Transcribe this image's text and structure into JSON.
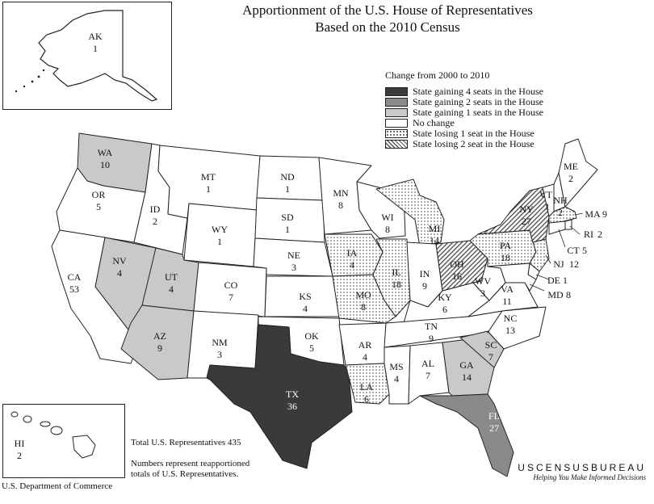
{
  "title": {
    "line1": "Apportionment of the U.S. House of Representatives",
    "line2": "Based on the 2010 Census"
  },
  "legend": {
    "header": "Change from 2000 to 2010",
    "items": [
      {
        "key": "g4",
        "label": "State gaining 4 seats in the House"
      },
      {
        "key": "g2",
        "label": "State gaining 2 seats in the House"
      },
      {
        "key": "g1",
        "label": "State gaining 1 seats in the House"
      },
      {
        "key": "none",
        "label": "No change"
      },
      {
        "key": "l1",
        "label": "State losing 1 seat in the House"
      },
      {
        "key": "l2",
        "label": "State losing 2 seat in the House"
      }
    ]
  },
  "colors": {
    "g4": "#3a3a3a",
    "g2": "#8a8a8a",
    "g1": "#c9c9c9",
    "none": "#ffffff"
  },
  "states": {
    "AK": {
      "abbr": "AK",
      "seats": "1",
      "change": "none"
    },
    "HI": {
      "abbr": "HI",
      "seats": "2",
      "change": "none"
    },
    "WA": {
      "abbr": "WA",
      "seats": "10",
      "change": "g1"
    },
    "OR": {
      "abbr": "OR",
      "seats": "5",
      "change": "none"
    },
    "CA": {
      "abbr": "CA",
      "seats": "53",
      "change": "none"
    },
    "ID": {
      "abbr": "ID",
      "seats": "2",
      "change": "none"
    },
    "NV": {
      "abbr": "NV",
      "seats": "4",
      "change": "g1"
    },
    "MT": {
      "abbr": "MT",
      "seats": "1",
      "change": "none"
    },
    "WY": {
      "abbr": "WY",
      "seats": "1",
      "change": "none"
    },
    "UT": {
      "abbr": "UT",
      "seats": "4",
      "change": "g1"
    },
    "AZ": {
      "abbr": "AZ",
      "seats": "9",
      "change": "g1"
    },
    "CO": {
      "abbr": "CO",
      "seats": "7",
      "change": "none"
    },
    "NM": {
      "abbr": "NM",
      "seats": "3",
      "change": "none"
    },
    "ND": {
      "abbr": "ND",
      "seats": "1",
      "change": "none"
    },
    "SD": {
      "abbr": "SD",
      "seats": "1",
      "change": "none"
    },
    "NE": {
      "abbr": "NE",
      "seats": "3",
      "change": "none"
    },
    "KS": {
      "abbr": "KS",
      "seats": "4",
      "change": "none"
    },
    "OK": {
      "abbr": "OK",
      "seats": "5",
      "change": "none"
    },
    "TX": {
      "abbr": "TX",
      "seats": "36",
      "change": "g4"
    },
    "MN": {
      "abbr": "MN",
      "seats": "8",
      "change": "none"
    },
    "IA": {
      "abbr": "IA",
      "seats": "4",
      "change": "l1"
    },
    "MO": {
      "abbr": "MO",
      "seats": "8",
      "change": "l1"
    },
    "AR": {
      "abbr": "AR",
      "seats": "4",
      "change": "none"
    },
    "LA": {
      "abbr": "LA",
      "seats": "6",
      "change": "l1"
    },
    "WI": {
      "abbr": "WI",
      "seats": "8",
      "change": "none"
    },
    "IL": {
      "abbr": "IL",
      "seats": "18",
      "change": "l1"
    },
    "MS": {
      "abbr": "MS",
      "seats": "4",
      "change": "none"
    },
    "MI": {
      "abbr": "MI",
      "seats": "14",
      "change": "l1"
    },
    "IN": {
      "abbr": "IN",
      "seats": "9",
      "change": "none"
    },
    "KY": {
      "abbr": "KY",
      "seats": "6",
      "change": "none"
    },
    "TN": {
      "abbr": "TN",
      "seats": "9",
      "change": "none"
    },
    "AL": {
      "abbr": "AL",
      "seats": "7",
      "change": "none"
    },
    "OH": {
      "abbr": "OH",
      "seats": "16",
      "change": "l2"
    },
    "GA": {
      "abbr": "GA",
      "seats": "14",
      "change": "g1"
    },
    "FL": {
      "abbr": "FL",
      "seats": "27",
      "change": "g2"
    },
    "SC": {
      "abbr": "SC",
      "seats": "7",
      "change": "g1"
    },
    "NC": {
      "abbr": "NC",
      "seats": "13",
      "change": "none"
    },
    "VA": {
      "abbr": "VA",
      "seats": "11",
      "change": "none"
    },
    "WV": {
      "abbr": "WV",
      "seats": "3",
      "change": "none"
    },
    "PA": {
      "abbr": "PA",
      "seats": "18",
      "change": "l1"
    },
    "NY": {
      "abbr": "NY",
      "seats": "27",
      "change": "l2"
    },
    "VT": {
      "abbr": "VT",
      "seats": "1",
      "change": "none"
    },
    "NH": {
      "abbr": "NH",
      "seats": "2",
      "change": "none"
    },
    "ME": {
      "abbr": "ME",
      "seats": "2",
      "change": "none"
    },
    "MA": {
      "abbr": "MA",
      "seats": "9",
      "change": "l1"
    },
    "RI": {
      "abbr": "RI",
      "seats": "2",
      "change": "none"
    },
    "CT": {
      "abbr": "CT",
      "seats": "5",
      "change": "none"
    },
    "NJ": {
      "abbr": "NJ",
      "seats": "12",
      "change": "l1"
    },
    "DE": {
      "abbr": "DE",
      "seats": "1",
      "change": "none"
    },
    "MD": {
      "abbr": "MD",
      "seats": "8",
      "change": "none"
    }
  },
  "footer": {
    "total": "Total U.S. Representatives 435",
    "note_line1": "Numbers represent reapportioned",
    "note_line2": "totals of U.S. Representatives.",
    "dept": "U.S. Department of Commerce",
    "bureau": "USCENSUSBUREAU",
    "tagline": "Helping You Make Informed Decisions"
  }
}
